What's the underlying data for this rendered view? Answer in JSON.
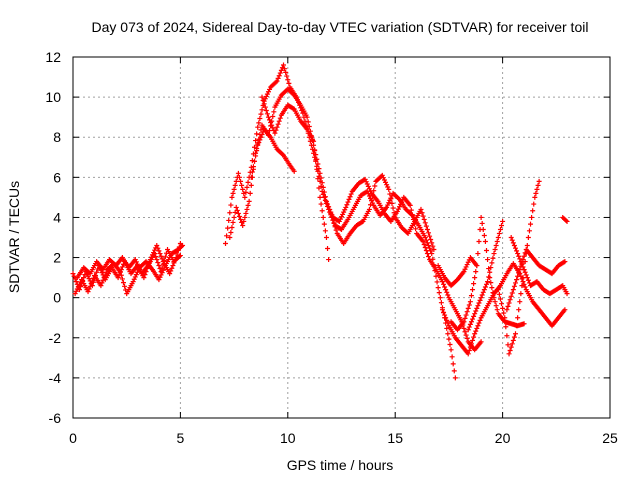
{
  "chart_data": {
    "type": "scatter",
    "title": "Day 073 of 2024, Sidereal Day-to-day VTEC variation (SDTVAR) for receiver toil",
    "xlabel": "GPS time / hours",
    "ylabel": "SDTVAR / TECUs",
    "xlim": [
      0,
      25
    ],
    "ylim": [
      -6,
      12
    ],
    "xticks": [
      0,
      5,
      10,
      15,
      20,
      25
    ],
    "yticks": [
      -6,
      -4,
      -2,
      0,
      2,
      4,
      6,
      8,
      10,
      12
    ],
    "grid": true,
    "legend": "none",
    "marker": "plus",
    "series_color": "#ff0000",
    "tracks": [
      [
        [
          0.0,
          1.2
        ],
        [
          0.3,
          0.4
        ],
        [
          0.6,
          1.3
        ],
        [
          0.9,
          0.6
        ],
        [
          1.2,
          1.6
        ],
        [
          1.5,
          0.9
        ],
        [
          1.8,
          1.5
        ],
        [
          2.1,
          1.0
        ],
        [
          2.4,
          1.8
        ],
        [
          2.7,
          1.2
        ],
        [
          3.0,
          1.6
        ],
        [
          3.3,
          1.0
        ],
        [
          3.6,
          1.9
        ],
        [
          3.9,
          2.6
        ],
        [
          4.2,
          1.8
        ],
        [
          4.5,
          1.2
        ],
        [
          4.8,
          2.0
        ],
        [
          5.0,
          2.7
        ]
      ],
      [
        [
          0.1,
          0.2
        ],
        [
          0.4,
          0.9
        ],
        [
          0.7,
          0.3
        ],
        [
          1.0,
          1.1
        ],
        [
          1.3,
          0.6
        ],
        [
          1.6,
          1.4
        ],
        [
          1.9,
          1.7
        ],
        [
          2.2,
          1.3
        ],
        [
          2.5,
          0.2
        ],
        [
          2.8,
          0.8
        ],
        [
          3.1,
          1.5
        ],
        [
          3.4,
          1.8
        ],
        [
          3.7,
          1.4
        ],
        [
          4.0,
          0.9
        ],
        [
          4.3,
          1.6
        ],
        [
          4.6,
          2.2
        ],
        [
          4.9,
          2.4
        ],
        [
          5.1,
          2.6
        ]
      ],
      [
        [
          0.2,
          1.0
        ],
        [
          0.5,
          1.5
        ],
        [
          0.8,
          1.2
        ],
        [
          1.1,
          1.8
        ],
        [
          1.4,
          1.4
        ],
        [
          1.7,
          1.9
        ],
        [
          2.0,
          1.6
        ],
        [
          2.3,
          2.0
        ],
        [
          2.6,
          1.5
        ],
        [
          2.9,
          1.9
        ],
        [
          3.2,
          1.2
        ],
        [
          3.5,
          1.6
        ],
        [
          3.8,
          2.2
        ],
        [
          4.1,
          1.3
        ],
        [
          4.4,
          2.4
        ],
        [
          4.7,
          1.8
        ],
        [
          5.0,
          2.1
        ]
      ],
      [
        [
          7.1,
          2.7
        ],
        [
          7.4,
          5.0
        ],
        [
          7.7,
          6.2
        ],
        [
          8.0,
          5.0
        ],
        [
          8.3,
          6.5
        ],
        [
          8.6,
          8.5
        ],
        [
          8.9,
          9.8
        ],
        [
          9.2,
          10.5
        ],
        [
          9.5,
          10.8
        ],
        [
          9.8,
          11.6
        ],
        [
          10.1,
          10.5
        ],
        [
          10.4,
          10.0
        ],
        [
          10.7,
          9.2
        ],
        [
          11.0,
          8.0
        ],
        [
          11.3,
          6.8
        ],
        [
          11.6,
          5.3
        ],
        [
          11.9,
          4.4
        ],
        [
          12.2,
          3.6
        ],
        [
          12.5,
          3.4
        ],
        [
          12.8,
          3.9
        ],
        [
          13.1,
          4.5
        ],
        [
          13.4,
          5.1
        ],
        [
          13.7,
          5.3
        ],
        [
          14.0,
          4.6
        ],
        [
          14.3,
          4.1
        ],
        [
          14.6,
          4.5
        ],
        [
          14.9,
          5.2
        ],
        [
          15.2,
          4.9
        ],
        [
          15.5,
          4.4
        ],
        [
          15.8,
          4.1
        ],
        [
          16.1,
          3.6
        ],
        [
          16.4,
          3.0
        ],
        [
          16.7,
          2.2
        ],
        [
          17.0,
          0.5
        ],
        [
          17.3,
          -1.0
        ],
        [
          17.6,
          -2.6
        ],
        [
          17.8,
          -4.0
        ]
      ],
      [
        [
          7.3,
          3.0
        ],
        [
          7.6,
          4.5
        ],
        [
          7.9,
          3.6
        ],
        [
          8.2,
          4.8
        ],
        [
          8.5,
          7.2
        ],
        [
          8.8,
          8.6
        ],
        [
          9.1,
          8.1
        ],
        [
          9.4,
          9.5
        ],
        [
          9.7,
          10.1
        ],
        [
          10.0,
          10.4
        ],
        [
          10.3,
          10.1
        ],
        [
          10.6,
          9.6
        ],
        [
          10.9,
          9.0
        ],
        [
          11.2,
          7.6
        ],
        [
          11.5,
          6.2
        ],
        [
          11.8,
          4.8
        ],
        [
          12.1,
          4.0
        ],
        [
          12.4,
          3.8
        ],
        [
          12.7,
          4.5
        ],
        [
          13.0,
          5.3
        ],
        [
          13.3,
          5.7
        ],
        [
          13.6,
          5.9
        ],
        [
          13.9,
          5.2
        ],
        [
          14.2,
          4.8
        ],
        [
          14.5,
          4.2
        ],
        [
          14.8,
          3.8
        ],
        [
          15.1,
          4.3
        ],
        [
          15.4,
          5.0
        ],
        [
          15.7,
          4.6
        ],
        [
          16.0,
          3.2
        ],
        [
          16.3,
          2.8
        ],
        [
          16.6,
          1.9
        ],
        [
          16.9,
          1.4
        ],
        [
          17.2,
          0.8
        ],
        [
          17.5,
          0.0
        ],
        [
          17.8,
          -0.6
        ],
        [
          18.1,
          -1.2
        ],
        [
          18.4,
          -2.2
        ],
        [
          18.7,
          -2.6
        ],
        [
          19.0,
          -2.2
        ]
      ],
      [
        [
          8.3,
          6.0
        ],
        [
          8.6,
          7.6
        ],
        [
          8.9,
          8.4
        ],
        [
          9.2,
          8.0
        ],
        [
          9.5,
          7.4
        ],
        [
          9.8,
          7.1
        ],
        [
          10.1,
          6.6
        ],
        [
          10.3,
          6.3
        ]
      ],
      [
        [
          8.8,
          10.0
        ],
        [
          9.1,
          9.0
        ],
        [
          9.4,
          8.2
        ],
        [
          9.7,
          9.1
        ],
        [
          10.0,
          9.6
        ],
        [
          10.3,
          9.4
        ],
        [
          10.6,
          8.8
        ],
        [
          10.9,
          8.4
        ],
        [
          11.2,
          7.8
        ],
        [
          11.5,
          5.0
        ],
        [
          11.8,
          3.0
        ],
        [
          11.9,
          1.9
        ]
      ],
      [
        [
          12.0,
          4.2
        ],
        [
          12.3,
          3.2
        ],
        [
          12.6,
          2.7
        ],
        [
          12.9,
          3.2
        ],
        [
          13.2,
          3.6
        ],
        [
          13.5,
          3.8
        ],
        [
          13.8,
          4.4
        ],
        [
          14.1,
          5.8
        ],
        [
          14.4,
          6.1
        ],
        [
          14.7,
          5.4
        ],
        [
          15.0,
          4.0
        ],
        [
          15.3,
          3.5
        ],
        [
          15.6,
          3.2
        ],
        [
          15.9,
          3.8
        ],
        [
          16.2,
          4.4
        ],
        [
          16.5,
          3.4
        ],
        [
          16.8,
          2.4
        ]
      ],
      [
        [
          17.0,
          1.6
        ],
        [
          17.3,
          1.0
        ],
        [
          17.6,
          0.6
        ],
        [
          17.9,
          0.9
        ],
        [
          18.2,
          1.3
        ],
        [
          18.5,
          2.0
        ],
        [
          18.8,
          1.6
        ]
      ],
      [
        [
          17.2,
          -0.6
        ],
        [
          17.5,
          -1.4
        ],
        [
          17.8,
          -2.0
        ],
        [
          18.1,
          -2.4
        ],
        [
          18.4,
          -2.8
        ],
        [
          18.7,
          -1.8
        ],
        [
          19.0,
          -1.0
        ],
        [
          19.3,
          -0.4
        ],
        [
          19.6,
          0.2
        ],
        [
          19.9,
          0.6
        ],
        [
          20.2,
          1.2
        ],
        [
          20.5,
          1.7
        ],
        [
          20.8,
          1.2
        ],
        [
          21.1,
          0.4
        ],
        [
          21.4,
          -0.2
        ],
        [
          21.7,
          -0.6
        ],
        [
          22.0,
          -1.0
        ],
        [
          22.3,
          -1.4
        ],
        [
          22.6,
          -1.0
        ],
        [
          22.9,
          -0.6
        ]
      ],
      [
        [
          17.6,
          -1.2
        ],
        [
          17.9,
          -1.6
        ],
        [
          18.2,
          -1.2
        ],
        [
          18.5,
          -0.2
        ],
        [
          18.8,
          1.6
        ],
        [
          19.0,
          4.0
        ],
        [
          19.2,
          2.8
        ],
        [
          19.4,
          1.0
        ],
        [
          19.6,
          0.0
        ],
        [
          19.8,
          -0.8
        ],
        [
          20.1,
          -1.2
        ],
        [
          20.4,
          -1.3
        ],
        [
          20.7,
          -1.4
        ],
        [
          21.0,
          -1.3
        ]
      ],
      [
        [
          18.4,
          -1.6
        ],
        [
          18.7,
          -0.8
        ],
        [
          19.0,
          0.0
        ],
        [
          19.3,
          0.8
        ],
        [
          19.6,
          2.2
        ],
        [
          19.9,
          3.4
        ],
        [
          20.0,
          3.8
        ]
      ],
      [
        [
          19.8,
          0.4
        ],
        [
          20.1,
          -1.0
        ],
        [
          20.3,
          -2.8
        ],
        [
          20.6,
          -1.8
        ],
        [
          20.9,
          0.6
        ],
        [
          21.2,
          3.0
        ],
        [
          21.5,
          5.0
        ],
        [
          21.7,
          5.8
        ]
      ],
      [
        [
          20.2,
          -0.6
        ],
        [
          20.5,
          0.4
        ],
        [
          20.8,
          1.4
        ],
        [
          21.1,
          2.4
        ],
        [
          21.4,
          2.0
        ],
        [
          21.7,
          1.6
        ],
        [
          22.0,
          1.4
        ],
        [
          22.3,
          1.2
        ],
        [
          22.6,
          1.6
        ],
        [
          22.9,
          1.8
        ]
      ],
      [
        [
          20.4,
          3.0
        ],
        [
          20.7,
          2.2
        ],
        [
          21.0,
          1.4
        ],
        [
          21.3,
          0.6
        ],
        [
          21.6,
          0.8
        ],
        [
          21.9,
          0.4
        ],
        [
          22.2,
          0.2
        ],
        [
          22.5,
          0.4
        ],
        [
          22.8,
          0.6
        ],
        [
          23.0,
          0.2
        ]
      ],
      [
        [
          22.8,
          4.0
        ],
        [
          23.0,
          3.8
        ]
      ]
    ]
  }
}
